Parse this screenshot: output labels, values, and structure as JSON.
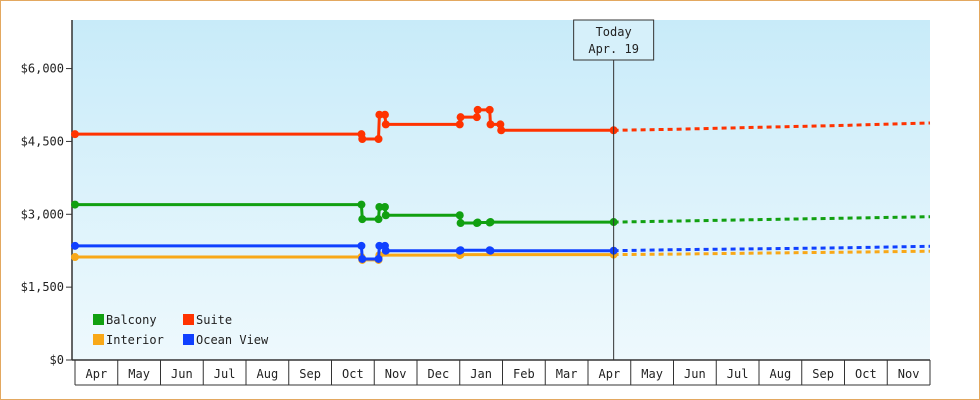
{
  "chart_data": {
    "type": "line",
    "title": "",
    "xlabel": "",
    "ylabel": "",
    "ylim": [
      0,
      7000
    ],
    "y_ticks": [
      0,
      1500,
      3000,
      4500,
      6000
    ],
    "y_tick_labels": [
      "$0",
      "$1,500",
      "$3,000",
      "$4,500",
      "$6,000"
    ],
    "x_tick_labels": [
      "Apr",
      "May",
      "Jun",
      "Jul",
      "Aug",
      "Sep",
      "Oct",
      "Nov",
      "Dec",
      "Jan",
      "Feb",
      "Mar",
      "Apr",
      "May",
      "Jun",
      "Jul",
      "Aug",
      "Sep",
      "Oct",
      "Nov"
    ],
    "x_range_months": [
      0,
      20
    ],
    "today_month": 12.6,
    "today_label": [
      "Today",
      "Apr. 19"
    ],
    "grid": false,
    "legend_position": "bottom-left",
    "series": [
      {
        "name": "Balcony",
        "color": "#11a011",
        "points": [
          [
            0.0,
            3200
          ],
          [
            6.7,
            3200
          ],
          [
            6.72,
            2900
          ],
          [
            7.1,
            2900
          ],
          [
            7.12,
            3150
          ],
          [
            7.25,
            3150
          ],
          [
            7.27,
            2980
          ],
          [
            9.0,
            2980
          ],
          [
            9.02,
            2820
          ],
          [
            9.4,
            2820
          ],
          [
            9.42,
            2830
          ],
          [
            9.7,
            2830
          ],
          [
            9.72,
            2840
          ],
          [
            12.6,
            2840
          ]
        ],
        "projection": [
          [
            12.6,
            2840
          ],
          [
            14.0,
            2860
          ],
          [
            16.0,
            2890
          ],
          [
            18.0,
            2920
          ],
          [
            20.0,
            2950
          ]
        ]
      },
      {
        "name": "Suite",
        "color": "#ff3300",
        "points": [
          [
            0.0,
            4650
          ],
          [
            6.7,
            4650
          ],
          [
            6.72,
            4550
          ],
          [
            7.1,
            4550
          ],
          [
            7.12,
            5050
          ],
          [
            7.25,
            5050
          ],
          [
            7.27,
            4850
          ],
          [
            9.0,
            4850
          ],
          [
            9.02,
            5000
          ],
          [
            9.4,
            5000
          ],
          [
            9.42,
            5150
          ],
          [
            9.7,
            5150
          ],
          [
            9.72,
            4850
          ],
          [
            9.95,
            4850
          ],
          [
            9.97,
            4730
          ],
          [
            12.6,
            4730
          ]
        ],
        "projection": [
          [
            12.6,
            4730
          ],
          [
            14.0,
            4750
          ],
          [
            16.0,
            4790
          ],
          [
            18.0,
            4830
          ],
          [
            20.0,
            4880
          ]
        ]
      },
      {
        "name": "Interior",
        "color": "#f8a818",
        "points": [
          [
            0.0,
            2120
          ],
          [
            6.7,
            2120
          ],
          [
            6.72,
            2060
          ],
          [
            7.1,
            2060
          ],
          [
            7.12,
            2160
          ],
          [
            7.25,
            2160
          ],
          [
            7.27,
            2160
          ],
          [
            9.0,
            2160
          ],
          [
            9.02,
            2170
          ],
          [
            12.6,
            2170
          ]
        ],
        "projection": [
          [
            12.6,
            2170
          ],
          [
            14.0,
            2180
          ],
          [
            16.0,
            2200
          ],
          [
            18.0,
            2220
          ],
          [
            20.0,
            2240
          ]
        ]
      },
      {
        "name": "Ocean View",
        "color": "#1040ff",
        "points": [
          [
            0.0,
            2350
          ],
          [
            6.7,
            2350
          ],
          [
            6.72,
            2080
          ],
          [
            7.1,
            2080
          ],
          [
            7.12,
            2350
          ],
          [
            7.25,
            2350
          ],
          [
            7.27,
            2250
          ],
          [
            9.0,
            2250
          ],
          [
            9.02,
            2260
          ],
          [
            9.4,
            2260
          ],
          [
            9.42,
            2260
          ],
          [
            9.7,
            2260
          ],
          [
            9.72,
            2250
          ],
          [
            12.6,
            2250
          ]
        ],
        "projection": [
          [
            12.6,
            2250
          ],
          [
            14.0,
            2270
          ],
          [
            16.0,
            2290
          ],
          [
            18.0,
            2310
          ],
          [
            20.0,
            2340
          ]
        ]
      }
    ],
    "legend": [
      {
        "name": "Balcony",
        "color": "#11a011"
      },
      {
        "name": "Suite",
        "color": "#ff3300"
      },
      {
        "name": "Interior",
        "color": "#f8a818"
      },
      {
        "name": "Ocean View",
        "color": "#1040ff"
      }
    ]
  }
}
